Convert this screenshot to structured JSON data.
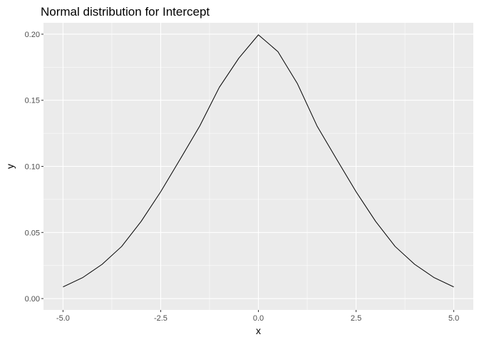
{
  "chart_data": {
    "type": "line",
    "title": "Normal distribution for Intercept",
    "xlabel": "x",
    "ylabel": "y",
    "xlim": [
      -5.5,
      5.5
    ],
    "ylim": [
      -0.0086,
      0.2086
    ],
    "x_ticks": [
      -5.0,
      -2.5,
      0.0,
      2.5,
      5.0
    ],
    "x_tick_labels": [
      "-5.0",
      "-2.5",
      "0.0",
      "2.5",
      "5.0"
    ],
    "y_ticks": [
      0.0,
      0.05,
      0.1,
      0.15,
      0.2
    ],
    "y_tick_labels": [
      "0.00",
      "0.05",
      "0.10",
      "0.15",
      "0.20"
    ],
    "grid": true,
    "legend": "none",
    "colors": {
      "panel_background": "#ebebeb",
      "grid_major": "#ffffff",
      "line": "#000000"
    },
    "series": [
      {
        "x": [
          -5.0,
          -4.5,
          -4.0,
          -3.5,
          -3.0,
          -2.5,
          -2.0,
          -1.5,
          -1.0,
          -0.5,
          0.0,
          0.5,
          1.0,
          1.5,
          2.0,
          2.5,
          3.0,
          3.5,
          4.0,
          4.5,
          5.0
        ],
        "values": [
          0.0088,
          0.0158,
          0.0259,
          0.0394,
          0.0584,
          0.0808,
          0.1055,
          0.1306,
          0.1598,
          0.1819,
          0.1995,
          0.1868,
          0.1625,
          0.1306,
          0.1055,
          0.0808,
          0.0584,
          0.0394,
          0.0259,
          0.0158,
          0.0088
        ]
      }
    ]
  }
}
